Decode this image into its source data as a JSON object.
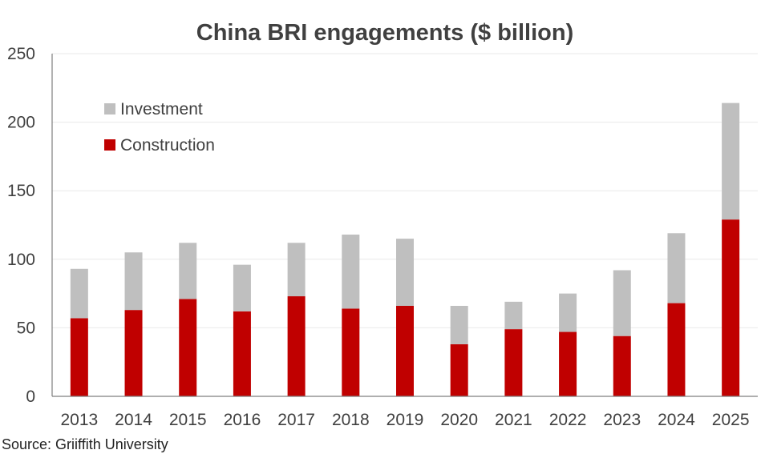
{
  "chart_data": {
    "type": "bar",
    "stacked": true,
    "title": "China BRI engagements ($ billion)",
    "xlabel": "",
    "ylabel": "",
    "ylim": [
      0,
      250
    ],
    "yticks": [
      "0",
      "50",
      "100",
      "150",
      "200",
      "250"
    ],
    "categories": [
      "2013",
      "2014",
      "2015",
      "2016",
      "2017",
      "2018",
      "2019",
      "2020",
      "2021",
      "2022",
      "2023",
      "2024",
      "2025"
    ],
    "series": [
      {
        "name": "Construction",
        "color": "#c00000",
        "values": [
          57,
          63,
          71,
          62,
          73,
          64,
          66,
          38,
          49,
          47,
          44,
          68,
          129
        ]
      },
      {
        "name": "Investment",
        "color": "#bfbfbf",
        "values": [
          36,
          42,
          41,
          34,
          39,
          54,
          49,
          28,
          20,
          28,
          48,
          51,
          85
        ]
      }
    ],
    "legend": {
      "position": "top-left",
      "items": [
        {
          "label": "Investment",
          "color": "#bfbfbf"
        },
        {
          "label": "Construction",
          "color": "#c00000"
        }
      ]
    },
    "grid": true,
    "grid_color": "#e9e9e9"
  },
  "source": "Source: Griiffith University"
}
